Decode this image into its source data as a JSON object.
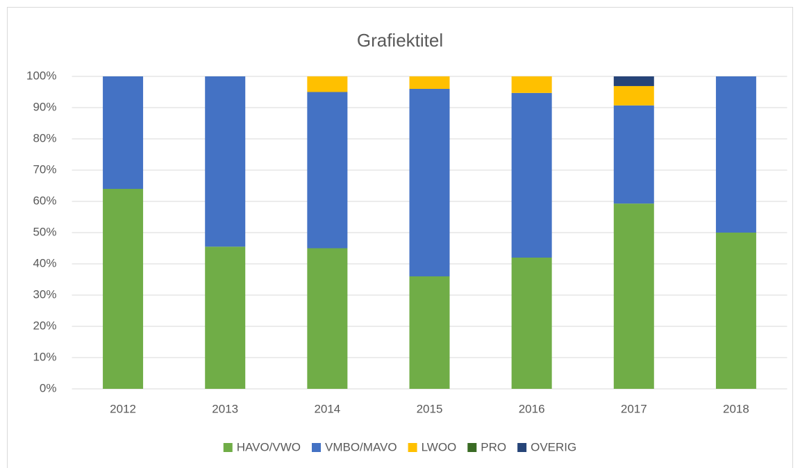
{
  "chart_data": {
    "type": "stacked_bar",
    "title": "Grafiektitel",
    "categories": [
      "2012",
      "2013",
      "2014",
      "2015",
      "2016",
      "2017",
      "2018"
    ],
    "series": [
      {
        "name": "HAVO/VWO",
        "color": "#70ad47",
        "values": [
          64,
          45.5,
          45,
          36,
          42,
          59.3,
          50
        ]
      },
      {
        "name": "VMBO/MAVO",
        "color": "#4472c4",
        "values": [
          36,
          54.5,
          50,
          60,
          52.7,
          31.4,
          50
        ]
      },
      {
        "name": "LWOO",
        "color": "#ffc000",
        "values": [
          0,
          0,
          5,
          4,
          5.3,
          6.2,
          0
        ]
      },
      {
        "name": "PRO",
        "color": "#3a6b24",
        "values": [
          0,
          0,
          0,
          0,
          0,
          0,
          0
        ]
      },
      {
        "name": "OVERIG",
        "color": "#264478",
        "values": [
          0,
          0,
          0,
          0,
          0,
          3.1,
          0
        ]
      }
    ],
    "ylim": [
      0,
      100
    ],
    "yticks": [
      {
        "value": 0,
        "label": "0%"
      },
      {
        "value": 10,
        "label": "10%"
      },
      {
        "value": 20,
        "label": "20%"
      },
      {
        "value": 30,
        "label": "30%"
      },
      {
        "value": 40,
        "label": "40%"
      },
      {
        "value": 50,
        "label": "50%"
      },
      {
        "value": 60,
        "label": "60%"
      },
      {
        "value": 70,
        "label": "70%"
      },
      {
        "value": 80,
        "label": "80%"
      },
      {
        "value": 90,
        "label": "90%"
      },
      {
        "value": 100,
        "label": "100%"
      }
    ],
    "grid": true,
    "legend": "bottom"
  }
}
